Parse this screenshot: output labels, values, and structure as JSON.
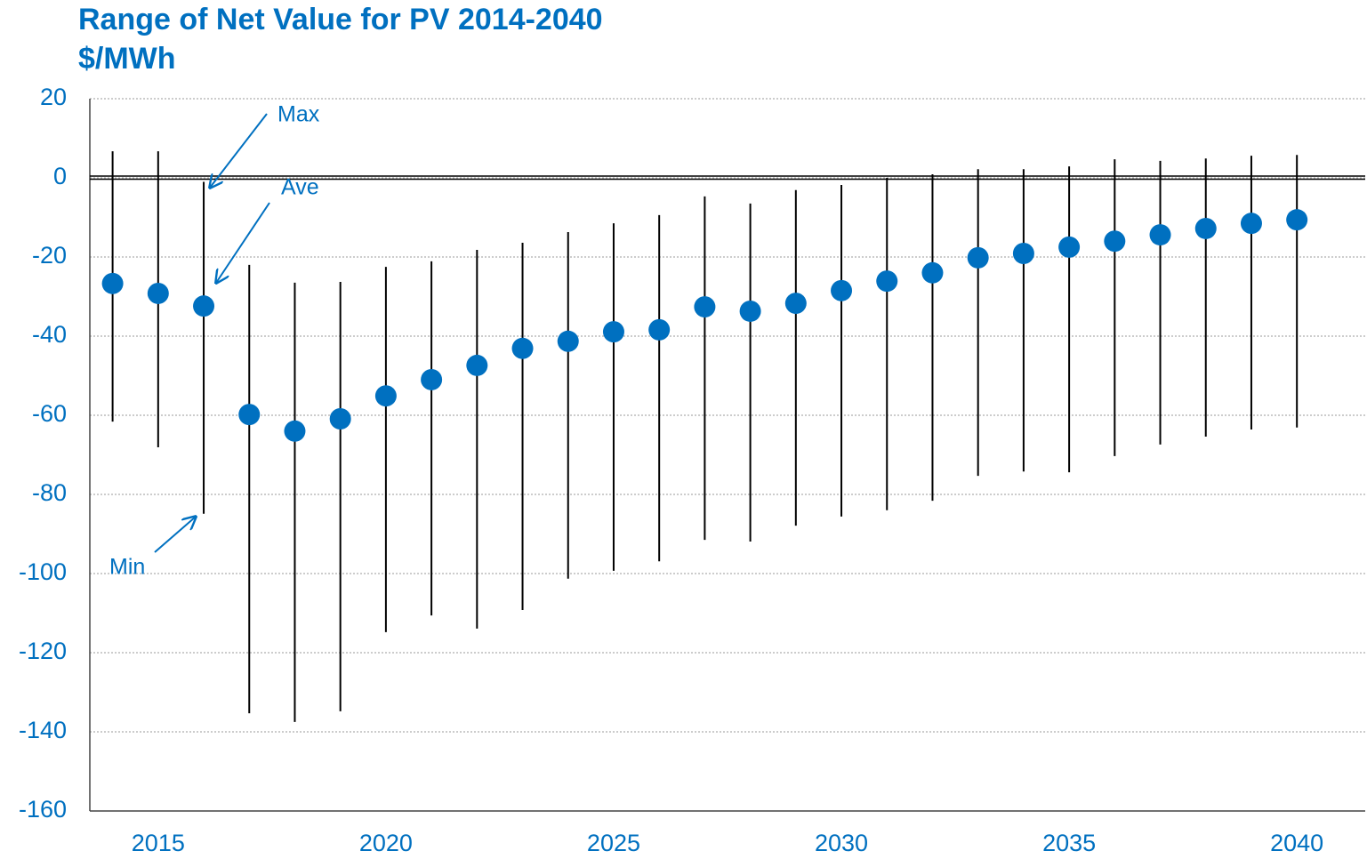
{
  "chart_data": {
    "type": "range",
    "title": "Range of Net Value for PV 2014-2040",
    "subtitle": "$/MWh",
    "x": [
      2014,
      2015,
      2016,
      2017,
      2018,
      2019,
      2020,
      2021,
      2022,
      2023,
      2024,
      2025,
      2026,
      2027,
      2028,
      2029,
      2030,
      2031,
      2032,
      2033,
      2034,
      2035,
      2036,
      2037,
      2038,
      2039,
      2040
    ],
    "series": [
      {
        "name": "Max",
        "color": "#000000",
        "values": [
          6.7,
          6.7,
          -1,
          -22.0,
          -26.5,
          -26.3,
          -22.5,
          -21.1,
          -18.2,
          -16.4,
          -13.7,
          -11.5,
          -9.4,
          -4.7,
          -6.5,
          -3.1,
          -1.8,
          0,
          0.9,
          2.2,
          2.2,
          2.9,
          4.7,
          4.3,
          4.9,
          5.6,
          5.8
        ]
      },
      {
        "name": "Ave",
        "color": "#0070C0",
        "values": [
          -26.7,
          -29.2,
          -32.4,
          -59.8,
          -64.0,
          -60.9,
          -55.1,
          -51.0,
          -47.4,
          -43.1,
          -41.3,
          -38.9,
          -38.4,
          -32.6,
          -33.7,
          -31.7,
          -28.5,
          -26.1,
          -24.0,
          -20.2,
          -19.1,
          -17.5,
          -16.0,
          -14.4,
          -12.8,
          -11.5,
          -10.6
        ]
      },
      {
        "name": "Min",
        "color": "#000000",
        "values": [
          -61.6,
          -68.1,
          -84.9,
          -135.3,
          -137.5,
          -134.8,
          -114.8,
          -110.6,
          -113.9,
          -109.2,
          -101.3,
          -99.3,
          -96.9,
          -91.5,
          -91.9,
          -87.9,
          -85.6,
          -84.0,
          -81.6,
          -75.3,
          -74.2,
          -74.4,
          -70.3,
          -67.4,
          -65.4,
          -63.6,
          -63.1
        ]
      }
    ],
    "xlim": [
      2013.5,
      2041.5
    ],
    "xticks": [
      2015,
      2020,
      2025,
      2030,
      2035,
      2040
    ],
    "ylim": [
      -160,
      20
    ],
    "yticks": [
      20,
      0,
      -20,
      -40,
      -60,
      -80,
      -100,
      -120,
      -140,
      -160
    ],
    "grid": true
  }
}
